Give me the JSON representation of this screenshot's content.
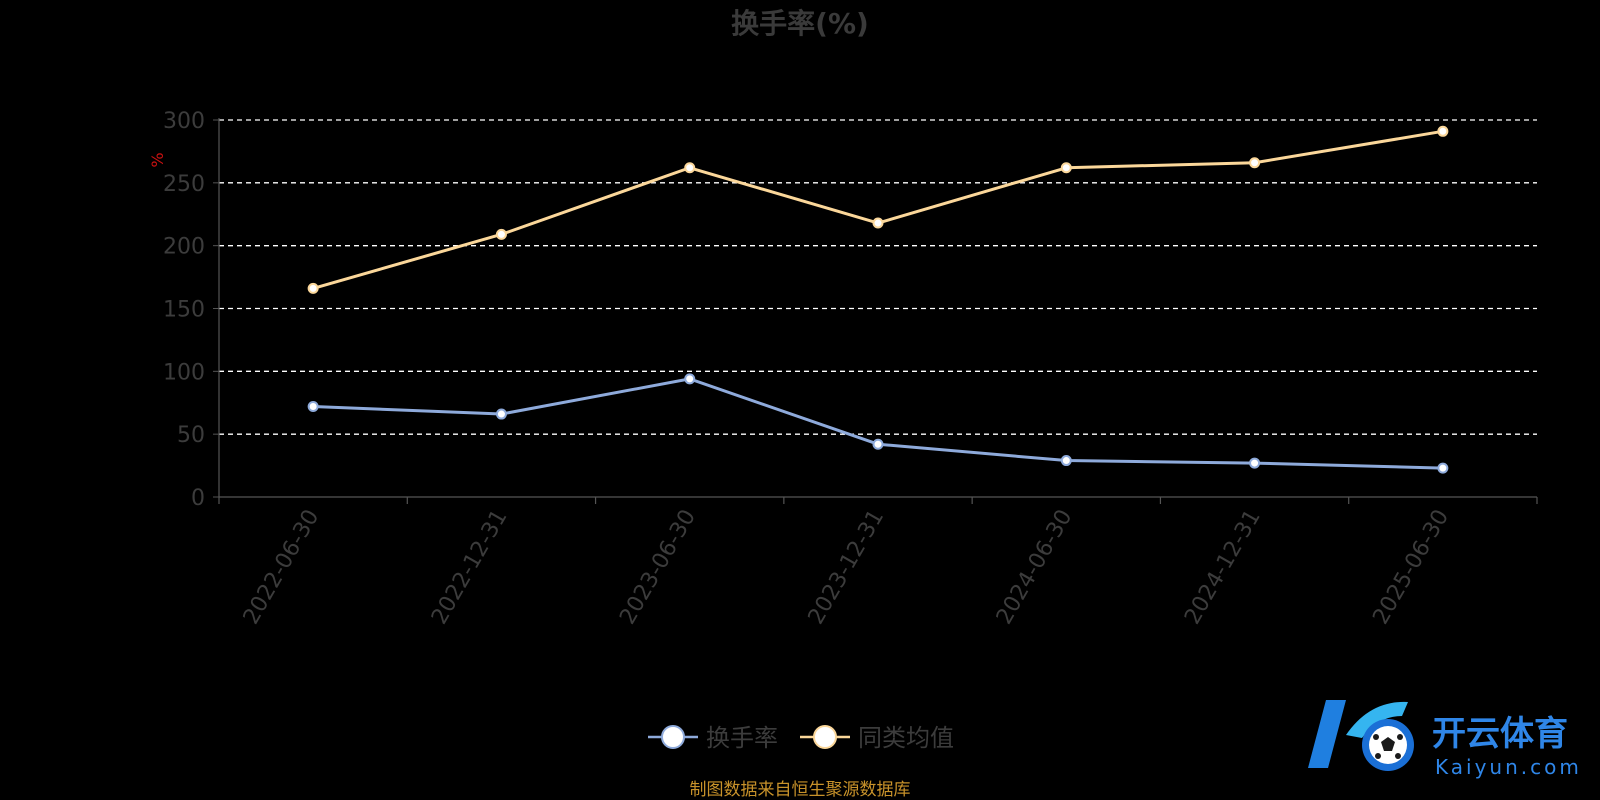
{
  "chart_data": {
    "type": "line",
    "title": "换手率(%)",
    "ylabel": "%",
    "ylim": [
      0,
      300
    ],
    "yticks": [
      0,
      50,
      100,
      150,
      200,
      250,
      300
    ],
    "categories": [
      "2022-06-30",
      "2022-12-31",
      "2023-06-30",
      "2023-12-31",
      "2024-06-30",
      "2024-12-31",
      "2025-06-30"
    ],
    "series": [
      {
        "name": "换手率",
        "color": "#8eaadb",
        "values": [
          72,
          66,
          94,
          42,
          29,
          27,
          23
        ]
      },
      {
        "name": "同类均值",
        "color": "#fbd79a",
        "values": [
          166,
          209,
          262,
          218,
          262,
          266,
          291
        ]
      }
    ],
    "grid": "horizontal-dashed",
    "legend_position": "bottom-center"
  },
  "source": "制图数据来自恒生聚源数据库",
  "watermark": {
    "name": "开云体育",
    "domain": "Kaiyun.com"
  },
  "colors": {
    "background": "#000000",
    "axis": "#555555",
    "grid": "#ffffff"
  }
}
